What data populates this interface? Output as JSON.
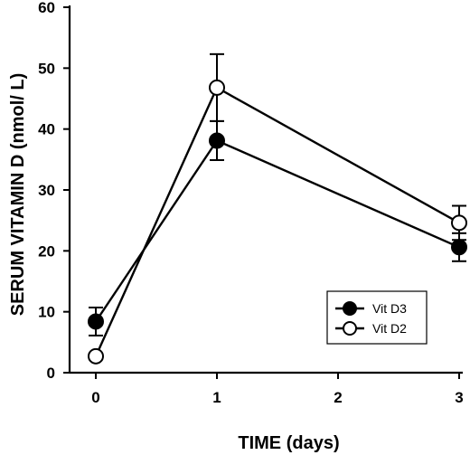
{
  "chart_data": {
    "type": "line",
    "xlabel": "TIME (days)",
    "ylabel": "SERUM VITAMIN D (nmol/ L)",
    "xlim": [
      0,
      3
    ],
    "ylim": [
      0,
      60
    ],
    "xticks": [
      0,
      1,
      2,
      3
    ],
    "yticks": [
      0,
      10,
      20,
      30,
      40,
      50,
      60
    ],
    "legend_position": "lower-right",
    "grid": false,
    "series": [
      {
        "name": "Vit D3",
        "marker": "filled-circle",
        "x": [
          0,
          1,
          3
        ],
        "y": [
          8.4,
          38.1,
          20.6
        ],
        "err": [
          2.3,
          3.2,
          2.3
        ]
      },
      {
        "name": "Vit D2",
        "marker": "open-circle",
        "x": [
          0,
          1,
          3
        ],
        "y": [
          2.7,
          46.8,
          24.6
        ],
        "err": [
          0,
          5.5,
          2.8
        ]
      }
    ]
  }
}
